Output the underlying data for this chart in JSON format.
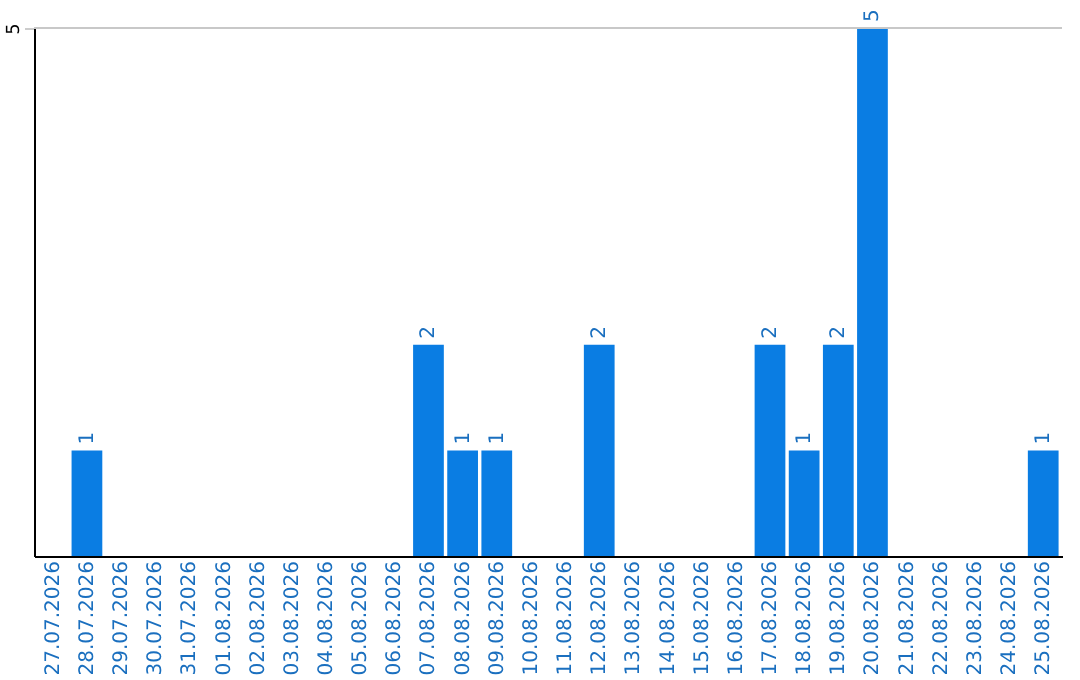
{
  "chart_data": {
    "type": "bar",
    "categories": [
      "27.07.2026",
      "28.07.2026",
      "29.07.2026",
      "30.07.2026",
      "31.07.2026",
      "01.08.2026",
      "02.08.2026",
      "03.08.2026",
      "04.08.2026",
      "05.08.2026",
      "06.08.2026",
      "07.08.2026",
      "08.08.2026",
      "09.08.2026",
      "10.08.2026",
      "11.08.2026",
      "12.08.2026",
      "13.08.2026",
      "14.08.2026",
      "15.08.2026",
      "16.08.2026",
      "17.08.2026",
      "18.08.2026",
      "19.08.2026",
      "20.08.2026",
      "21.08.2026",
      "22.08.2026",
      "23.08.2026",
      "24.08.2026",
      "25.08.2026"
    ],
    "values": [
      0,
      1,
      0,
      0,
      0,
      0,
      0,
      0,
      0,
      0,
      0,
      2,
      1,
      1,
      0,
      0,
      2,
      0,
      0,
      0,
      0,
      2,
      1,
      2,
      5,
      0,
      0,
      0,
      0,
      1
    ],
    "value_labels": [
      null,
      "1",
      null,
      null,
      null,
      null,
      null,
      null,
      null,
      null,
      null,
      "2",
      "1",
      "1",
      null,
      null,
      "2",
      null,
      null,
      null,
      null,
      "2",
      "1",
      "2",
      "5",
      null,
      null,
      null,
      null,
      "1"
    ],
    "color": "#0a7de3",
    "ylim": [
      0,
      5
    ],
    "yticks": [
      5
    ],
    "ref_lines": [
      {
        "axis": "y",
        "value": 5,
        "color": "#c8c8c8"
      }
    ]
  }
}
